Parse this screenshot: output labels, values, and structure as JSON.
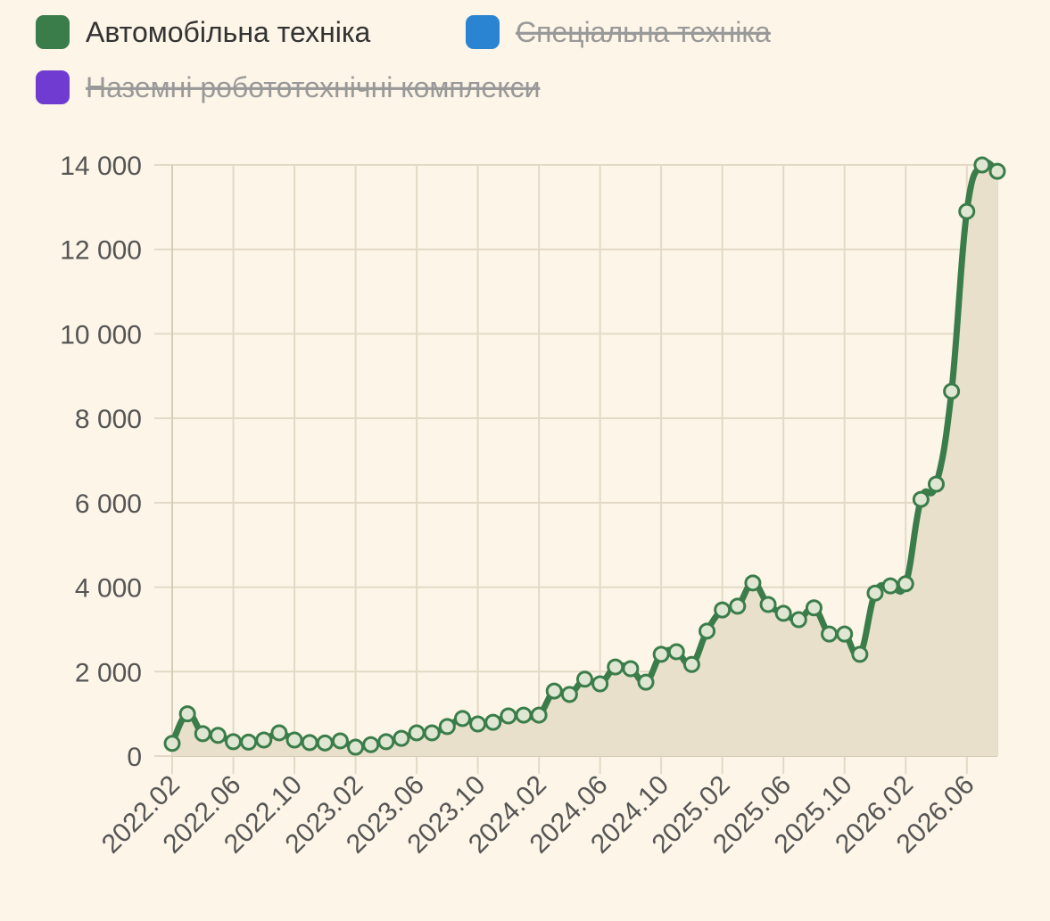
{
  "chart_data": {
    "type": "area-line",
    "categories": [
      "2022.02",
      null,
      null,
      null,
      "2022.06",
      null,
      null,
      null,
      "2022.10",
      null,
      null,
      null,
      "2023.02",
      null,
      null,
      null,
      "2023.06",
      null,
      null,
      null,
      "2023.10",
      null,
      null,
      null,
      "2024.02",
      null,
      null,
      null,
      "2024.06",
      null,
      null,
      null,
      "2024.10",
      null,
      null,
      null,
      "2025.02",
      null,
      null,
      null,
      "2025.06",
      null,
      null,
      null,
      "2025.10",
      null,
      null,
      null,
      "2026.02",
      null,
      null,
      null,
      "2026.06",
      null,
      null
    ],
    "series": [
      {
        "name": "Автомобільна техніка",
        "color": "#3a7d4a",
        "fill": "#e9e0cc",
        "values": [
          300,
          1000,
          530,
          490,
          340,
          330,
          380,
          550,
          380,
          320,
          310,
          360,
          210,
          270,
          340,
          420,
          550,
          550,
          700,
          890,
          760,
          800,
          950,
          970,
          970,
          1540,
          1460,
          1820,
          1710,
          2110,
          2070,
          1750,
          2410,
          2470,
          2170,
          2960,
          3460,
          3550,
          4100,
          3590,
          3380,
          3230,
          3510,
          2890,
          2890,
          2410,
          3860,
          4030,
          4080,
          6080,
          6440,
          8640,
          12900,
          14000,
          13850
        ]
      },
      {
        "name": "Спеціальна техніка",
        "color": "#2a84d2",
        "hidden": true
      },
      {
        "name": "Наземні робототехнічні комплекси",
        "color": "#6f3bd0",
        "hidden": true
      }
    ],
    "ylim": [
      0,
      14000
    ],
    "yticks": [
      0,
      {
        "value": 2000,
        "label": "2 000"
      },
      {
        "value": 4000,
        "label": "4 000"
      },
      {
        "value": 6000,
        "label": "6 000"
      },
      {
        "value": 8000,
        "label": "8 000"
      },
      {
        "value": 10000,
        "label": "10 000"
      },
      {
        "value": 12000,
        "label": "12 000"
      },
      {
        "value": 14000,
        "label": "14 000"
      }
    ],
    "grid": true
  }
}
